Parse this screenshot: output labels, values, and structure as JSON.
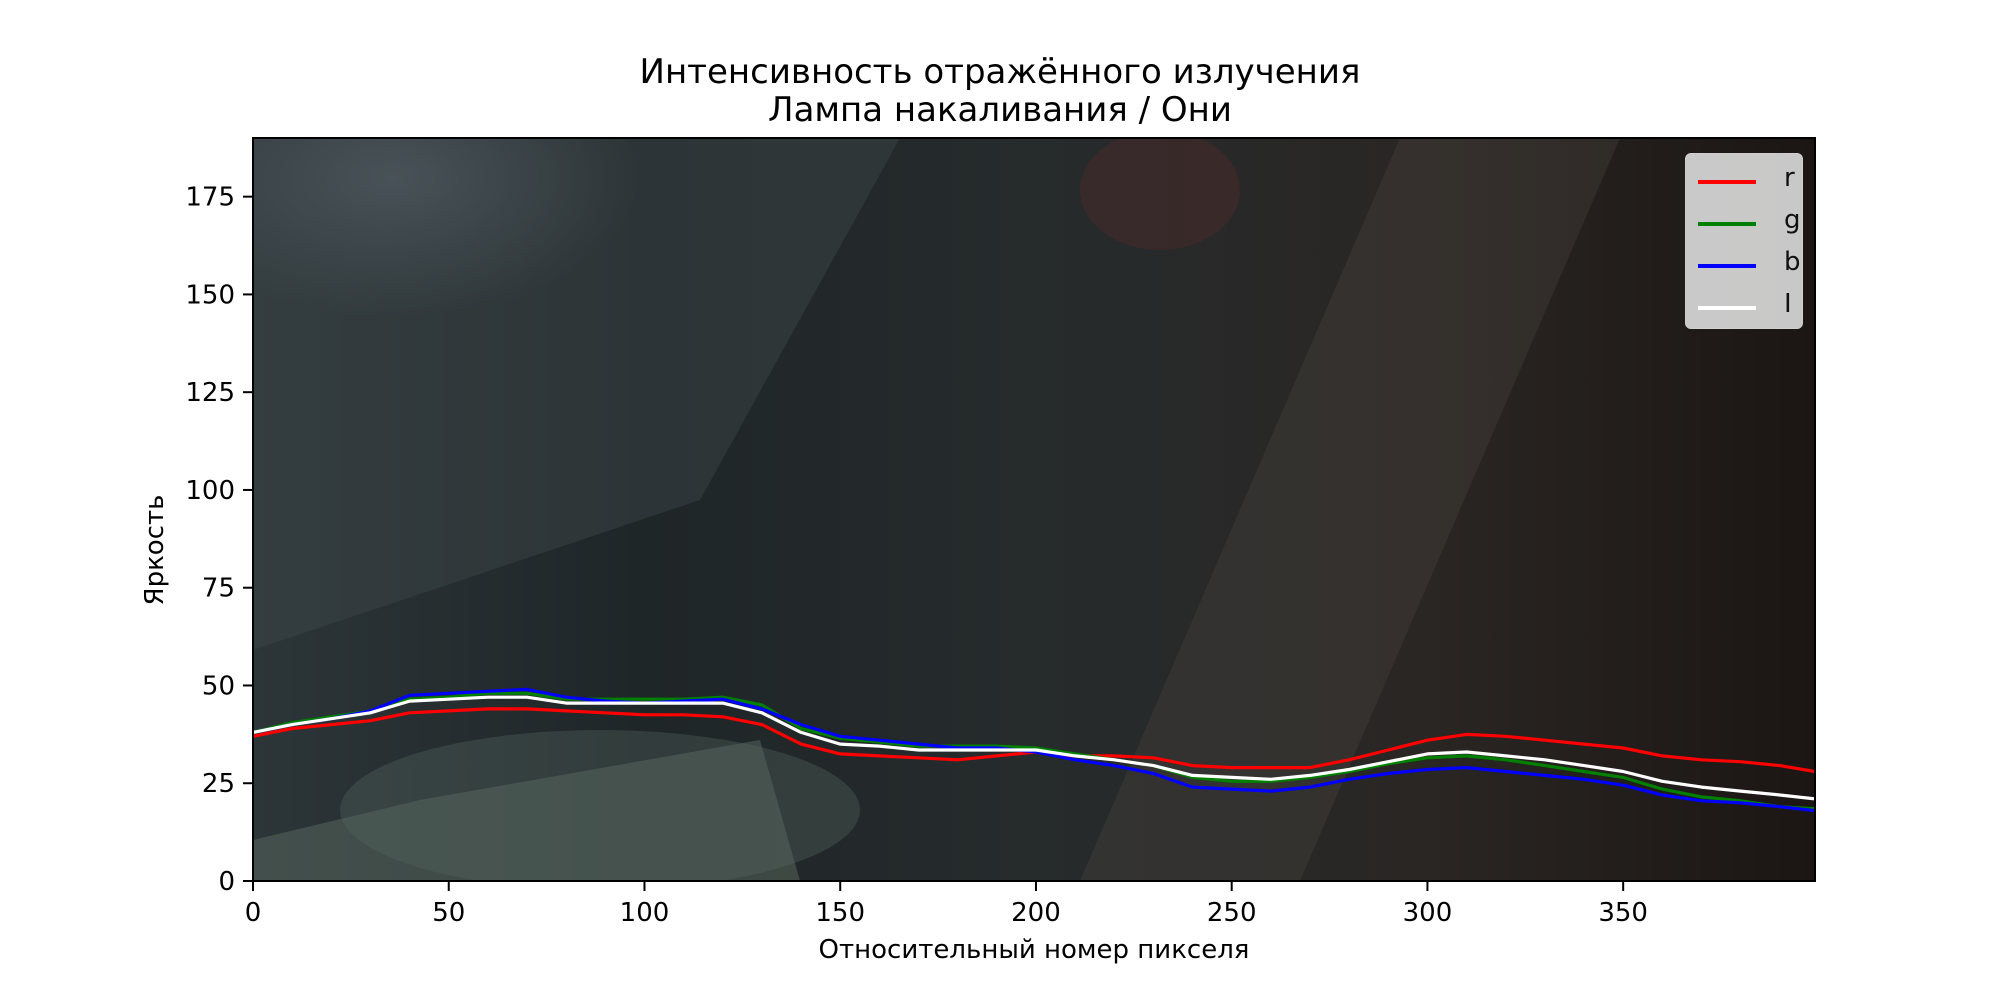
{
  "chart_data": {
    "type": "line",
    "title": "Интенсивность отражённого излучения",
    "subtitle": "Лампа накаливания / Они",
    "xlabel": "Относительный номер пикселя",
    "ylabel": "Яркость",
    "xlim": [
      0,
      399
    ],
    "ylim": [
      0,
      190
    ],
    "xticks": [
      0,
      50,
      100,
      150,
      200,
      250,
      300,
      350
    ],
    "yticks": [
      0,
      25,
      50,
      75,
      100,
      125,
      150,
      175
    ],
    "background": "photo (dark blurred image) behind plot area",
    "legend_position": "top-right",
    "x": [
      0,
      10,
      20,
      30,
      40,
      50,
      60,
      70,
      80,
      90,
      100,
      110,
      120,
      130,
      140,
      150,
      160,
      170,
      180,
      190,
      200,
      210,
      220,
      230,
      240,
      250,
      260,
      270,
      280,
      290,
      300,
      310,
      320,
      330,
      340,
      350,
      360,
      370,
      380,
      390,
      399
    ],
    "series": [
      {
        "name": "r",
        "color": "#ff0000",
        "values": [
          37,
          39,
          40,
          41,
          43,
          43.5,
          44,
          44,
          43.5,
          43,
          42.5,
          42.5,
          42,
          40,
          35,
          32.5,
          32,
          31.5,
          31,
          32,
          33,
          32,
          32,
          31.5,
          29.5,
          29,
          29,
          29,
          31,
          33.5,
          36,
          37.5,
          37,
          36,
          35,
          34,
          32,
          31,
          30.5,
          29.5,
          28
        ]
      },
      {
        "name": "g",
        "color": "#008000",
        "values": [
          38,
          40.5,
          42,
          43.5,
          46.5,
          47,
          48,
          48,
          46.5,
          46.5,
          46.5,
          46.5,
          47,
          45,
          39,
          36.5,
          35.5,
          34.5,
          34.5,
          34.5,
          34,
          32.5,
          31,
          29.5,
          26.5,
          25.5,
          25.5,
          26.5,
          28,
          30,
          31.5,
          32,
          31,
          29.5,
          28,
          26.5,
          23.5,
          21.5,
          20.5,
          19,
          18.5
        ]
      },
      {
        "name": "b",
        "color": "#0000ff",
        "values": [
          38,
          40,
          41.5,
          43.5,
          47.5,
          48,
          48.5,
          49,
          47,
          46,
          45.5,
          46,
          46.5,
          44,
          40,
          37,
          36,
          35,
          34,
          34,
          33,
          31,
          29.5,
          27.5,
          24,
          23.5,
          23,
          24,
          26,
          27.5,
          28.5,
          29,
          28,
          27,
          26,
          24.5,
          22,
          20.5,
          20,
          19,
          18
        ]
      },
      {
        "name": "I",
        "color": "#ffffff",
        "values": [
          38,
          40,
          41.5,
          43,
          46,
          46.5,
          47,
          47,
          45.5,
          45.5,
          45.5,
          45.5,
          45.5,
          43,
          38,
          35,
          34.5,
          33.5,
          33.5,
          33.5,
          33.5,
          32,
          31,
          29.5,
          27,
          26.5,
          26,
          27,
          28.5,
          30.5,
          32.5,
          33,
          32,
          31,
          29.5,
          28,
          25.5,
          24,
          23,
          22,
          21
        ]
      }
    ]
  }
}
